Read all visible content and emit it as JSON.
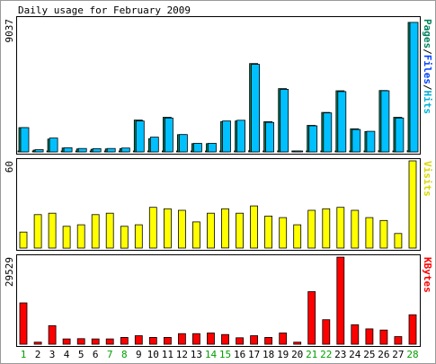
{
  "chart_data": {
    "type": "bar",
    "title": "Daily usage for February 2009",
    "categories": [
      "1",
      "2",
      "3",
      "4",
      "5",
      "6",
      "7",
      "8",
      "9",
      "10",
      "11",
      "12",
      "13",
      "14",
      "15",
      "16",
      "17",
      "18",
      "19",
      "20",
      "21",
      "22",
      "23",
      "24",
      "25",
      "26",
      "27",
      "28"
    ],
    "weekend_days": [
      "1",
      "7",
      "8",
      "14",
      "15",
      "21",
      "22",
      "28"
    ],
    "panels": [
      {
        "id": "hits",
        "max_label": "9037",
        "ylim": [
          0,
          9037
        ],
        "legend": [
          {
            "text": "Pages",
            "color": "#00805c"
          },
          {
            "text": "/",
            "color": "#000000"
          },
          {
            "text": "Files",
            "color": "#0040ff"
          },
          {
            "text": "/",
            "color": "#000000"
          },
          {
            "text": "Hits",
            "color": "#00b0d8"
          }
        ],
        "series": [
          {
            "name": "Pages",
            "color": "#008040",
            "values": [
              50,
              20,
              60,
              30,
              30,
              30,
              30,
              30,
              60,
              30,
              50,
              40,
              30,
              40,
              40,
              60,
              80,
              40,
              60,
              20,
              40,
              60,
              60,
              40,
              30,
              80,
              50,
              80
            ]
          },
          {
            "name": "Files",
            "color": "#00805c",
            "values": [
              1650,
              120,
              870,
              260,
              200,
              180,
              200,
              220,
              2160,
              900,
              2350,
              1170,
              560,
              560,
              2060,
              2100,
              6000,
              2050,
              4300,
              40,
              1800,
              2680,
              4150,
              1570,
              1380,
              4170,
              2350,
              8800
            ]
          },
          {
            "name": "Hits",
            "color": "#00c0ff",
            "values": [
              1650,
              150,
              940,
              280,
              230,
              220,
              230,
              260,
              2100,
              1000,
              2300,
              1180,
              580,
              580,
              2100,
              2150,
              5950,
              2000,
              4250,
              50,
              1770,
              2650,
              4100,
              1520,
              1400,
              4150,
              2300,
              8800
            ]
          }
        ]
      },
      {
        "id": "visits",
        "max_label": "60",
        "ylim": [
          0,
          60
        ],
        "legend": [
          {
            "text": "Visits",
            "color": "#d8d800"
          }
        ],
        "series": [
          {
            "name": "Visits",
            "color": "#ffff00",
            "values": [
              11,
              23,
              24,
              15,
              16,
              23,
              24,
              15,
              16,
              28,
              27,
              26,
              18,
              24,
              27,
              24,
              29,
              22,
              21,
              16,
              26,
              27,
              28,
              26,
              21,
              19,
              10,
              60
            ]
          }
        ]
      },
      {
        "id": "kbytes",
        "max_label": "29529",
        "ylim": [
          0,
          29529
        ],
        "legend": [
          {
            "text": "KBytes",
            "color": "#ff0000"
          }
        ],
        "series": [
          {
            "name": "KBytes",
            "color": "#ff0000",
            "values": [
              14000,
              700,
              6300,
              1800,
              1900,
              1800,
              1800,
              2300,
              2900,
              2300,
              2300,
              3600,
              3600,
              3800,
              3300,
              2200,
              2900,
              2300,
              3800,
              700,
              17800,
              8300,
              29500,
              6600,
              5200,
              4800,
              2600,
              10000
            ]
          }
        ]
      }
    ]
  }
}
